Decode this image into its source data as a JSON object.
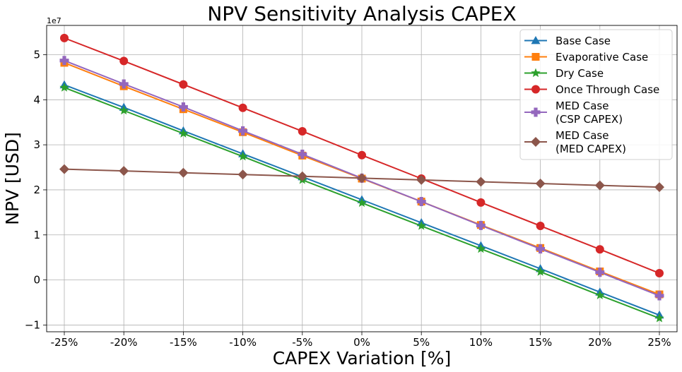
{
  "chart_data": {
    "type": "line",
    "title": "NPV Sensitivity Analysis CAPEX",
    "xlabel": "CAPEX Variation [%]",
    "ylabel": "NPV [USD]",
    "y_offset_label": "1e7",
    "categories": [
      "-25%",
      "-20%",
      "-15%",
      "-10%",
      "-5%",
      "0%",
      "5%",
      "10%",
      "15%",
      "20%",
      "25%"
    ],
    "y_ticks": [
      -1,
      0,
      1,
      2,
      3,
      4,
      5
    ],
    "y_tick_labels": [
      "−1",
      "0",
      "1",
      "2",
      "3",
      "4",
      "5"
    ],
    "ylim": [
      -1.15,
      5.65
    ],
    "grid": true,
    "legend_position": "top-right",
    "series": [
      {
        "name": "Base Case",
        "color": "#1f77b4",
        "marker": "triangle",
        "values": [
          4.33,
          3.83,
          3.31,
          2.8,
          2.29,
          1.78,
          1.27,
          0.76,
          0.25,
          -0.27,
          -0.78
        ]
      },
      {
        "name": "Evaporative Case",
        "color": "#ff7f0e",
        "marker": "square",
        "values": [
          4.82,
          4.3,
          3.79,
          3.28,
          2.76,
          2.25,
          1.74,
          1.22,
          0.71,
          0.19,
          -0.32
        ]
      },
      {
        "name": "Dry Case",
        "color": "#2ca02c",
        "marker": "star",
        "values": [
          4.27,
          3.76,
          3.25,
          2.74,
          2.22,
          1.71,
          1.2,
          0.69,
          0.18,
          -0.34,
          -0.85
        ]
      },
      {
        "name": "Once Through Case",
        "color": "#d62728",
        "marker": "circle",
        "values": [
          5.37,
          4.86,
          4.34,
          3.82,
          3.3,
          2.77,
          2.25,
          1.72,
          1.2,
          0.68,
          0.15
        ]
      },
      {
        "name": "MED Case\n(CSP CAPEX)",
        "color": "#9467bd",
        "marker": "plus",
        "values": [
          4.87,
          4.35,
          3.84,
          3.31,
          2.79,
          2.26,
          1.74,
          1.21,
          0.69,
          0.17,
          -0.35
        ]
      },
      {
        "name": "MED Case\n(MED CAPEX)",
        "color": "#8c564b",
        "marker": "diamond",
        "values": [
          2.46,
          2.42,
          2.38,
          2.34,
          2.3,
          2.26,
          2.22,
          2.18,
          2.14,
          2.1,
          2.06
        ]
      }
    ]
  }
}
